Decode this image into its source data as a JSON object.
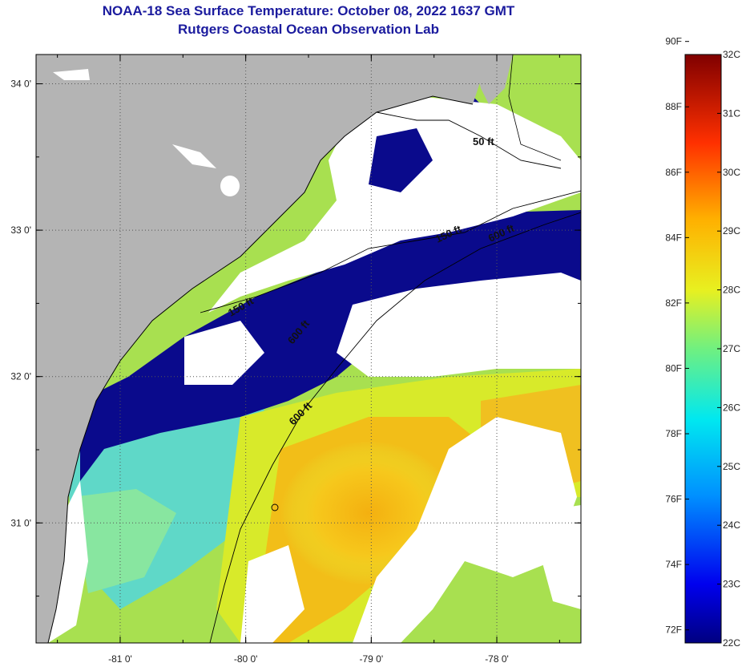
{
  "title": {
    "line1": "NOAA-18 Sea Surface Temperature:  October 08, 2022 1637 GMT",
    "line2": "Rutgers Coastal Ocean Observation Lab"
  },
  "map": {
    "lon_range": [
      -81.67,
      -77.33
    ],
    "lat_range": [
      30.18,
      34.2
    ],
    "lon_ticks": [
      {
        "value": -81,
        "label": "-81 0'"
      },
      {
        "value": -80,
        "label": "-80 0'"
      },
      {
        "value": -79,
        "label": "-79 0'"
      },
      {
        "value": -78,
        "label": "-78 0'"
      }
    ],
    "lat_ticks": [
      {
        "value": 34,
        "label": "34 0'"
      },
      {
        "value": 33,
        "label": "33 0'"
      },
      {
        "value": 32,
        "label": "32 0'"
      },
      {
        "value": 31,
        "label": "31 0'"
      }
    ],
    "contour_labels": [
      "50 ft",
      "150 ft",
      "600 ft",
      "600 ft",
      "150 ft",
      "600 ft"
    ],
    "colors": {
      "land": "#b4b4b4",
      "cloud": "#ffffff",
      "cold": "#0a0a8c"
    }
  },
  "colorbar": {
    "fahrenheit_labels": [
      "90F",
      "88F",
      "86F",
      "84F",
      "82F",
      "80F",
      "78F",
      "76F",
      "74F",
      "72F"
    ],
    "celsius_labels": [
      "32C",
      "31C",
      "30C",
      "29C",
      "28C",
      "27C",
      "26C",
      "25C",
      "24C",
      "23C",
      "22C"
    ],
    "range_c": [
      22,
      32
    ]
  }
}
